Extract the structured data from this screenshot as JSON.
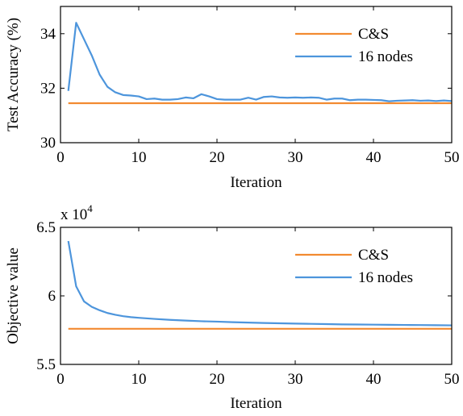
{
  "colors": {
    "cs": "#f28a30",
    "nodes": "#4d95dc"
  },
  "chart_data": [
    {
      "type": "line",
      "xlabel": "Iteration",
      "ylabel": "Test Accuracy (%)",
      "xlim": [
        0,
        50
      ],
      "ylim": [
        30,
        35
      ],
      "xticks": [
        0,
        10,
        20,
        30,
        40,
        50
      ],
      "yticks": [
        30,
        32,
        34
      ],
      "exponent_label": "",
      "legend_position": "top-right",
      "series": [
        {
          "name": "C&S",
          "color": "#f28a30",
          "x": [
            1,
            50
          ],
          "y": [
            31.45,
            31.45
          ]
        },
        {
          "name": "16 nodes",
          "color": "#4d95dc",
          "x": [
            1,
            2,
            3,
            4,
            5,
            6,
            7,
            8,
            9,
            10,
            11,
            12,
            13,
            14,
            15,
            16,
            17,
            18,
            19,
            20,
            21,
            22,
            23,
            24,
            25,
            26,
            27,
            28,
            29,
            30,
            31,
            32,
            33,
            34,
            35,
            36,
            37,
            38,
            39,
            40,
            41,
            42,
            43,
            44,
            45,
            46,
            47,
            48,
            49,
            50
          ],
          "y": [
            31.9,
            34.4,
            33.8,
            33.2,
            32.5,
            32.05,
            31.85,
            31.75,
            31.73,
            31.7,
            31.6,
            31.62,
            31.58,
            31.58,
            31.6,
            31.66,
            31.63,
            31.78,
            31.7,
            31.6,
            31.58,
            31.58,
            31.58,
            31.65,
            31.58,
            31.68,
            31.7,
            31.66,
            31.65,
            31.66,
            31.65,
            31.66,
            31.65,
            31.58,
            31.62,
            31.62,
            31.56,
            31.58,
            31.58,
            31.57,
            31.56,
            31.52,
            31.54,
            31.55,
            31.56,
            31.54,
            31.55,
            31.53,
            31.55,
            31.53
          ]
        }
      ]
    },
    {
      "type": "line",
      "xlabel": "Iteration",
      "ylabel": "Objective value",
      "xlim": [
        0,
        50
      ],
      "ylim": [
        5.5,
        6.5
      ],
      "xticks": [
        0,
        10,
        20,
        30,
        40,
        50
      ],
      "yticks": [
        5.5,
        6,
        6.5
      ],
      "ytick_labels": [
        "5.5",
        "6",
        "6.5"
      ],
      "exponent_label": "x 10",
      "exponent_power": "4",
      "legend_position": "top-right",
      "series": [
        {
          "name": "C&S",
          "color": "#f28a30",
          "x": [
            1,
            50
          ],
          "y": [
            5.76,
            5.76
          ]
        },
        {
          "name": "16 nodes",
          "color": "#4d95dc",
          "x": [
            1,
            2,
            3,
            4,
            5,
            6,
            7,
            8,
            9,
            10,
            12,
            14,
            16,
            18,
            20,
            22,
            24,
            26,
            28,
            30,
            32,
            34,
            36,
            38,
            40,
            42,
            44,
            46,
            48,
            50
          ],
          "y": [
            6.4,
            6.07,
            5.96,
            5.92,
            5.895,
            5.875,
            5.862,
            5.852,
            5.845,
            5.84,
            5.832,
            5.825,
            5.82,
            5.815,
            5.812,
            5.808,
            5.805,
            5.802,
            5.8,
            5.798,
            5.796,
            5.794,
            5.792,
            5.791,
            5.79,
            5.789,
            5.788,
            5.787,
            5.786,
            5.785
          ]
        }
      ]
    }
  ]
}
